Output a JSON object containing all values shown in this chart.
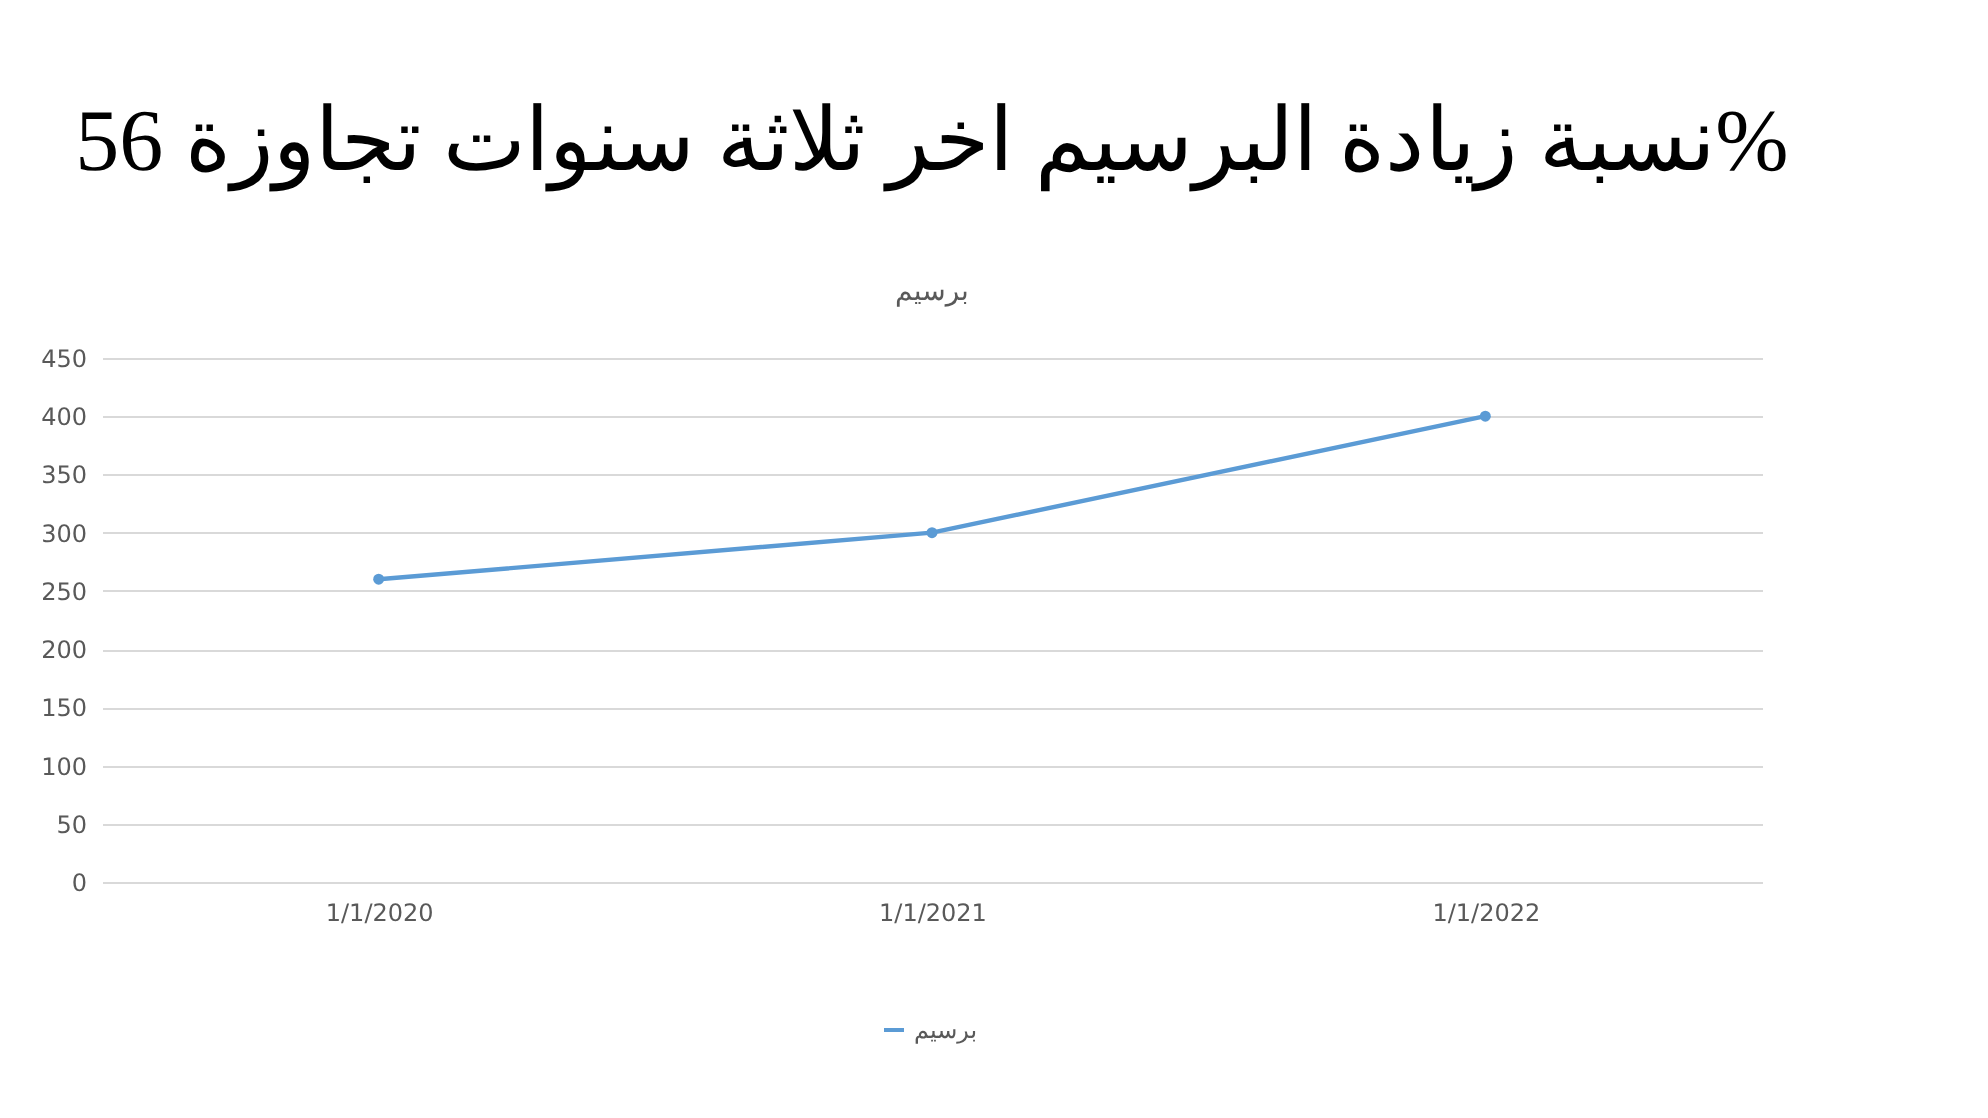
{
  "chart_data": {
    "type": "line",
    "title": "نسبة زيادة البرسيم اخر ثلاثة سنوات تجاوزة 56%",
    "subtitle": "برسيم",
    "categories": [
      "1/1/2020",
      "1/1/2021",
      "1/1/2022"
    ],
    "series": [
      {
        "name": "برسيم",
        "color": "#5b9bd5",
        "values": [
          260,
          300,
          400
        ]
      }
    ],
    "ylim": [
      0,
      450
    ],
    "yticks": [
      0,
      50,
      100,
      150,
      200,
      250,
      300,
      350,
      400,
      450
    ],
    "grid": "y",
    "legend": "bottom",
    "marker": "circle",
    "line_style": "solid"
  }
}
